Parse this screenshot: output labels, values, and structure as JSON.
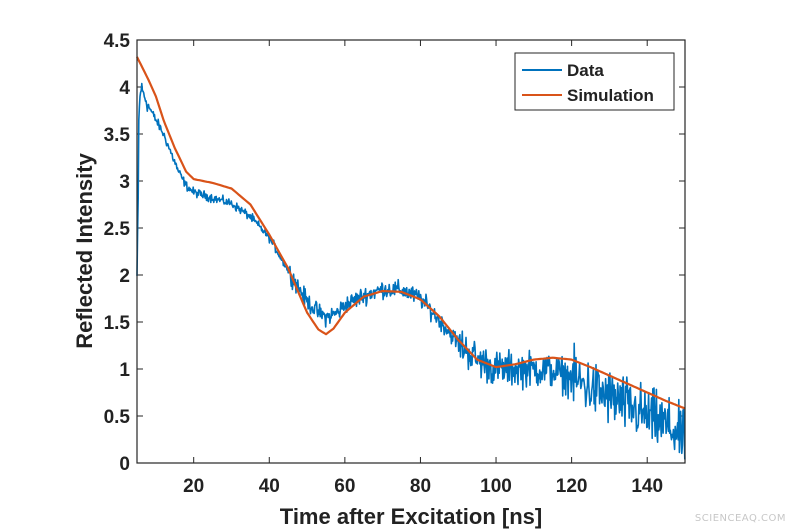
{
  "chart_data": {
    "type": "line",
    "title": "",
    "xlabel": "Time after Excitation [ns]",
    "ylabel": "Reflected Intensity",
    "xlim": [
      5,
      150
    ],
    "ylim": [
      0,
      4.5
    ],
    "xticks": [
      20,
      40,
      60,
      80,
      100,
      120,
      140
    ],
    "xtick_labels": [
      "20",
      "40",
      "60",
      "80",
      "100",
      "120",
      "140"
    ],
    "yticks": [
      0,
      0.5,
      1,
      1.5,
      2,
      2.5,
      3,
      3.5,
      4,
      4.5
    ],
    "ytick_labels": [
      "0",
      "0.5",
      "1",
      "1.5",
      "2",
      "2.5",
      "3",
      "3.5",
      "4",
      "4.5"
    ],
    "legend_position": "top-right",
    "grid": false,
    "series": [
      {
        "name": "Data",
        "color": "#0072BD",
        "noisy": true,
        "x": [
          5,
          5.5,
          6,
          7,
          8,
          10,
          12,
          14,
          16,
          18,
          20,
          25,
          30,
          35,
          40,
          45,
          50,
          53,
          55,
          58,
          60,
          65,
          70,
          75,
          80,
          85,
          90,
          95,
          100,
          105,
          110,
          115,
          120,
          125,
          130,
          135,
          140,
          145,
          150
        ],
        "y": [
          1.6,
          3.7,
          4.0,
          3.9,
          3.8,
          3.65,
          3.5,
          3.3,
          3.1,
          2.95,
          2.88,
          2.82,
          2.76,
          2.62,
          2.4,
          2.05,
          1.72,
          1.6,
          1.55,
          1.6,
          1.68,
          1.78,
          1.85,
          1.84,
          1.75,
          1.52,
          1.28,
          1.1,
          1.0,
          1.0,
          1.0,
          0.98,
          0.9,
          0.8,
          0.7,
          0.6,
          0.5,
          0.4,
          0.25
        ]
      },
      {
        "name": "Simulation",
        "color": "#D95319",
        "noisy": false,
        "x": [
          5,
          8,
          10,
          12,
          15,
          18,
          20,
          25,
          30,
          35,
          40,
          45,
          50,
          53,
          55,
          57,
          60,
          65,
          70,
          75,
          80,
          85,
          90,
          95,
          100,
          105,
          110,
          115,
          120,
          125,
          130,
          135,
          140,
          145,
          150
        ],
        "y": [
          4.32,
          4.08,
          3.9,
          3.65,
          3.35,
          3.1,
          3.02,
          2.98,
          2.92,
          2.75,
          2.43,
          2.07,
          1.6,
          1.42,
          1.37,
          1.43,
          1.6,
          1.77,
          1.83,
          1.82,
          1.74,
          1.56,
          1.31,
          1.1,
          1.02,
          1.05,
          1.1,
          1.12,
          1.1,
          1.02,
          0.93,
          0.84,
          0.75,
          0.66,
          0.58
        ]
      }
    ]
  },
  "watermark": "SCIENCEAQ.COM"
}
